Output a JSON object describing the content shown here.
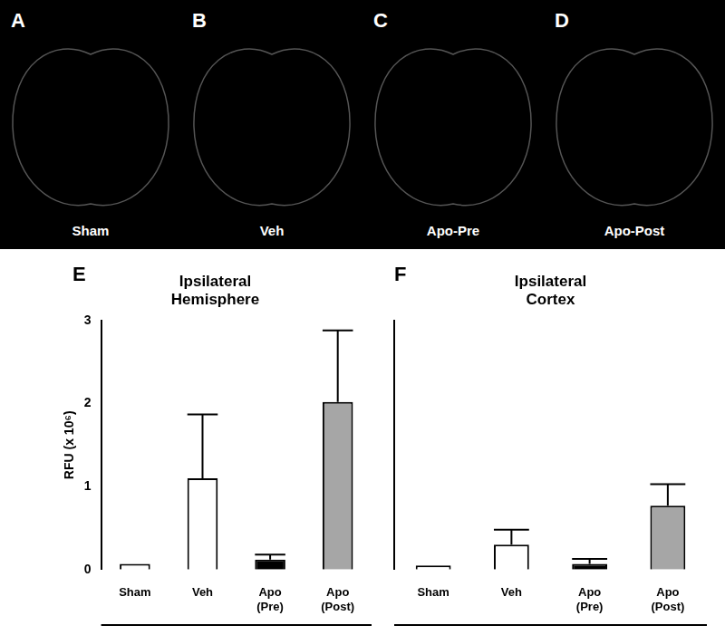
{
  "image_panels": [
    {
      "letter": "A",
      "label": "Sham"
    },
    {
      "letter": "B",
      "label": "Veh"
    },
    {
      "letter": "C",
      "label": "Apo-Pre"
    },
    {
      "letter": "D",
      "label": "Apo-Post"
    }
  ],
  "chart_data": [
    {
      "type": "bar",
      "panel": "E",
      "title": "Ipsilateral Hemisphere",
      "y_label": "RFU (x 10⁶)",
      "categories": [
        "Sham",
        "Veh",
        "Apo (Pre)",
        "Apo (Post)"
      ],
      "values": [
        0.07,
        1.1,
        0.12,
        2.02
      ],
      "errors": [
        0,
        0.77,
        0.06,
        0.86
      ],
      "colors": [
        "#ffffff",
        "#ffffff",
        "#000000",
        "#a6a6a6"
      ],
      "ylim": [
        0,
        3
      ],
      "yticks": [
        0,
        1,
        2,
        3
      ],
      "grid": false
    },
    {
      "type": "bar",
      "panel": "F",
      "title": "Ipsilateral Cortex",
      "categories": [
        "Sham",
        "Veh",
        "Apo (Pre)",
        "Apo (Post)"
      ],
      "values": [
        0.05,
        0.3,
        0.07,
        0.77
      ],
      "errors": [
        0,
        0.18,
        0.06,
        0.26
      ],
      "colors": [
        "#ffffff",
        "#ffffff",
        "#000000",
        "#a6a6a6"
      ],
      "ylim": [
        0,
        3
      ],
      "grid": false,
      "tick_labels": false
    }
  ]
}
